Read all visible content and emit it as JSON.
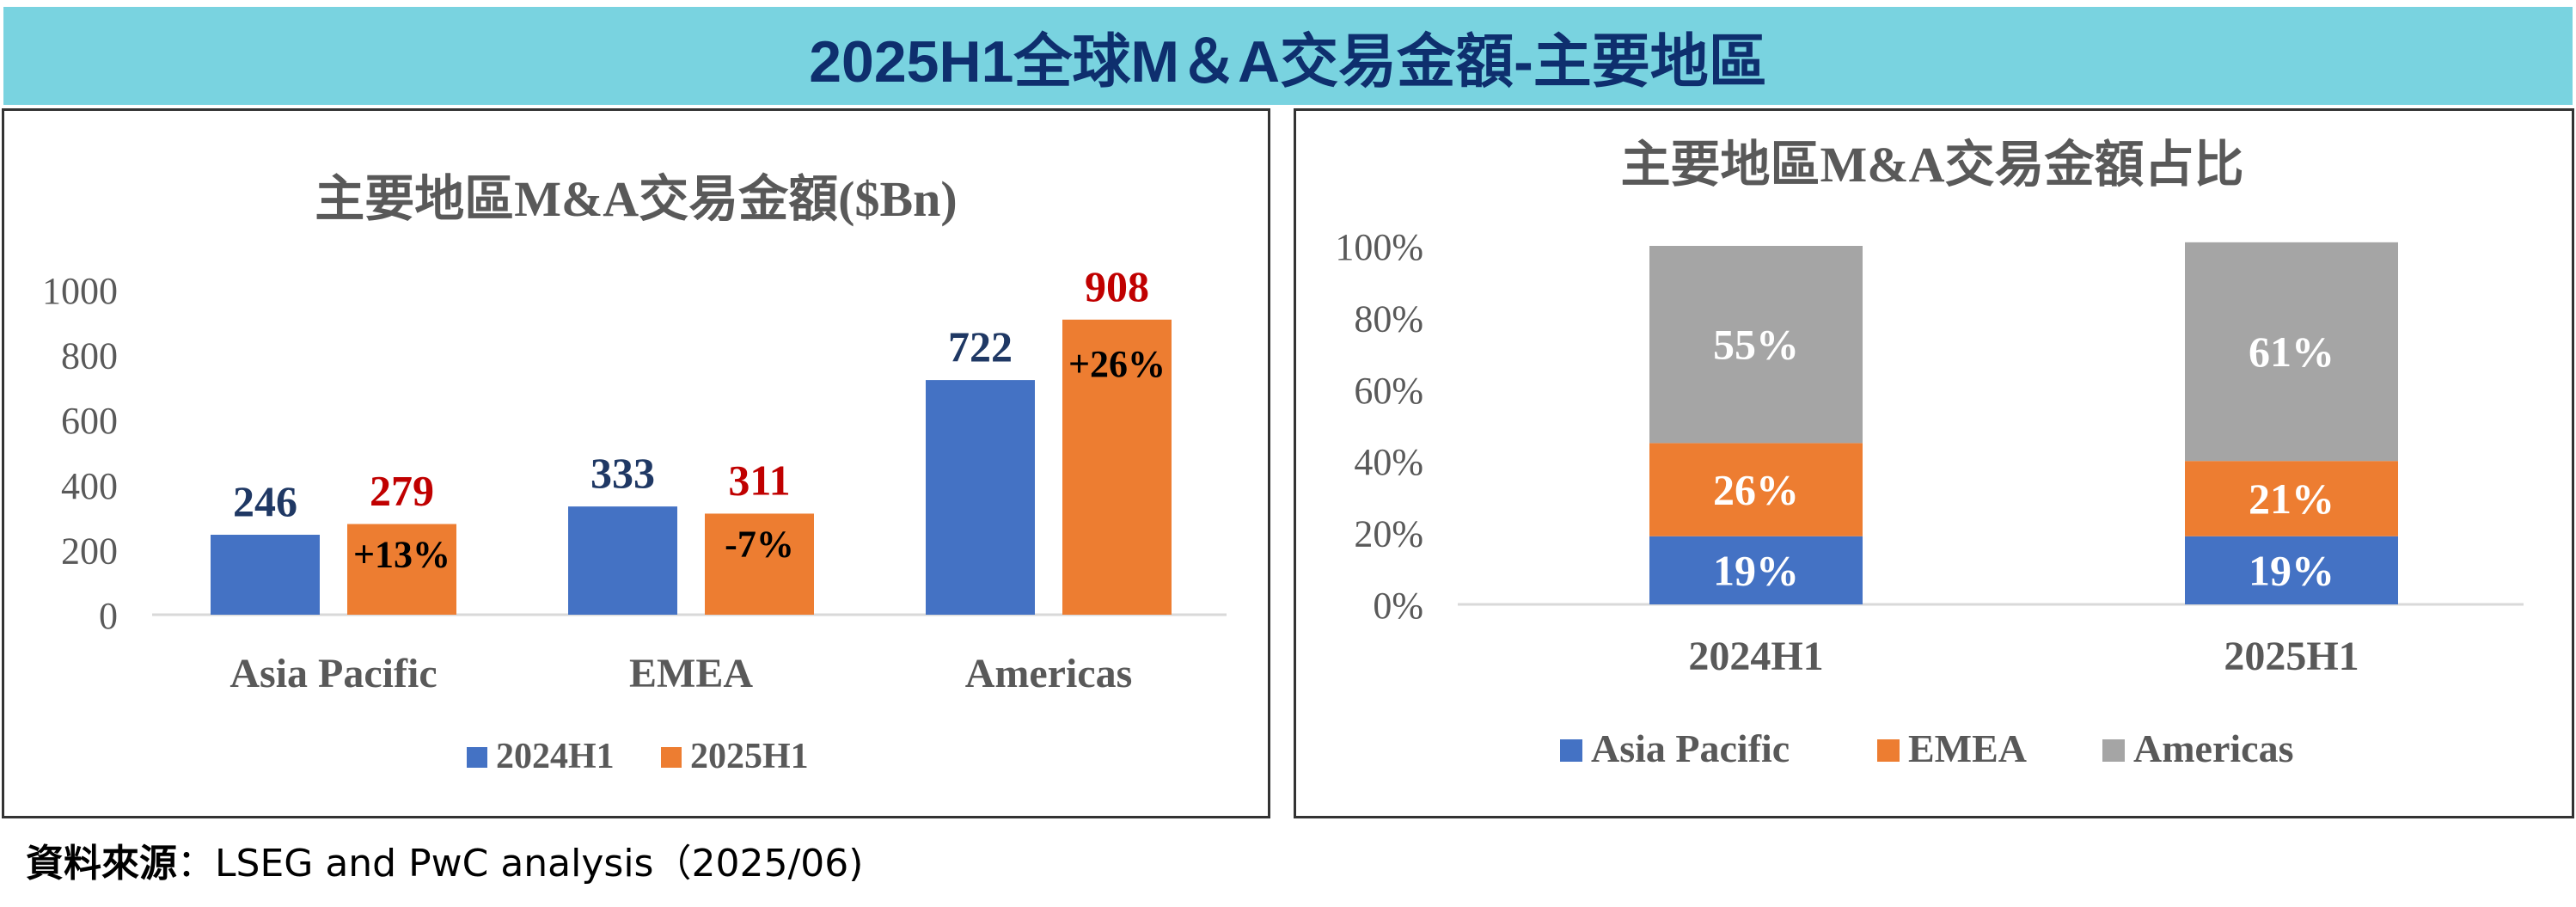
{
  "banner_title": "2025H1全球M＆A交易金額-主要地區",
  "source": {
    "label": "資料來源",
    "text": "：LSEG and PwC analysis（2025/06)"
  },
  "colors": {
    "blue": "#4472c4",
    "orange": "#ed7d31",
    "gray": "#a5a5a5",
    "navy_label": "#1f3864",
    "red_label": "#c00000",
    "banner": "#79d3e0"
  },
  "chart_data": [
    {
      "type": "bar",
      "title": "主要地區M&A交易金額($Bn)",
      "categories": [
        "Asia Pacific",
        "EMEA",
        "Americas"
      ],
      "series": [
        {
          "name": "2024H1",
          "values": [
            246,
            333,
            722
          ]
        },
        {
          "name": "2025H1",
          "values": [
            279,
            311,
            908
          ]
        }
      ],
      "growth_labels": [
        "+13%",
        "-7%",
        "+26%"
      ],
      "yticks": [
        "0",
        "200",
        "400",
        "600",
        "800",
        "1000"
      ],
      "ylim": [
        0,
        1000
      ],
      "grid": false,
      "legend": "bottom"
    },
    {
      "type": "bar",
      "stacked": true,
      "title": "主要地區M&A交易金額占比",
      "categories": [
        "2024H1",
        "2025H1"
      ],
      "series": [
        {
          "name": "Asia Pacific",
          "values": [
            19,
            19
          ],
          "labels": [
            "19%",
            "19%"
          ]
        },
        {
          "name": "EMEA",
          "values": [
            26,
            21
          ],
          "labels": [
            "26%",
            "21%"
          ]
        },
        {
          "name": "Americas",
          "values": [
            55,
            61
          ],
          "labels": [
            "55%",
            "61%"
          ]
        }
      ],
      "yticks": [
        "0%",
        "20%",
        "40%",
        "60%",
        "80%",
        "100%"
      ],
      "ylim": [
        0,
        100
      ],
      "grid": false,
      "legend": "bottom"
    }
  ]
}
